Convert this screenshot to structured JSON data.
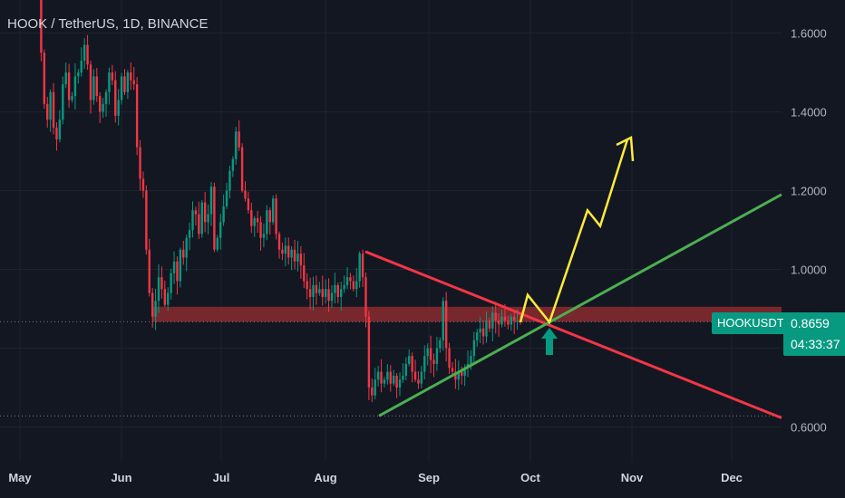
{
  "header": {
    "title": "HOOK / TetherUS, 1D, BINANCE"
  },
  "price_tag": {
    "symbol": "HOOKUSDT",
    "price": "0.8659",
    "countdown": "04:33:37"
  },
  "colors": {
    "background": "#131722",
    "up": "#089981",
    "down": "#f23645",
    "zone": "#8b2a2e",
    "resistance_line": "#f23645",
    "support_line": "#4caf50",
    "projection": "#ffeb3b",
    "breakout_arrow": "#089981"
  },
  "chart_data": {
    "type": "candlestick",
    "title": "HOOK / TetherUS, 1D, BINANCE",
    "y_ticks": [
      "1.6000",
      "1.4000",
      "1.2000",
      "1.0000",
      "0.6000"
    ],
    "x_ticks": [
      "May",
      "Jun",
      "Jul",
      "Aug",
      "Sep",
      "Oct",
      "Nov",
      "Dec"
    ],
    "ylim": [
      0.56,
      1.68
    ],
    "last_price": 0.8659,
    "support_level": 0.628,
    "zone": {
      "from": 0.867,
      "to": 0.905
    },
    "closes": [
      1.72,
      1.55,
      1.42,
      1.38,
      1.45,
      1.36,
      1.33,
      1.38,
      1.47,
      1.5,
      1.43,
      1.44,
      1.49,
      1.5,
      1.53,
      1.57,
      1.52,
      1.43,
      1.49,
      1.44,
      1.4,
      1.42,
      1.45,
      1.5,
      1.48,
      1.39,
      1.43,
      1.49,
      1.45,
      1.5,
      1.48,
      1.47,
      1.31,
      1.23,
      1.2,
      1.05,
      0.94,
      0.88,
      0.92,
      0.98,
      0.95,
      0.91,
      0.94,
      0.99,
      1.02,
      0.97,
      1.05,
      1.03,
      1.08,
      1.1,
      1.15,
      1.14,
      1.09,
      1.17,
      1.12,
      1.14,
      1.21,
      1.05,
      1.08,
      1.12,
      1.16,
      1.2,
      1.25,
      1.28,
      1.35,
      1.31,
      1.2,
      1.18,
      1.15,
      1.11,
      1.13,
      1.12,
      1.08,
      1.09,
      1.15,
      1.12,
      1.18,
      1.09,
      1.05,
      1.04,
      1.06,
      1.03,
      1.05,
      1.02,
      1.04,
      1.01,
      0.97,
      0.95,
      0.93,
      0.96,
      0.94,
      0.95,
      0.93,
      0.95,
      0.92,
      0.94,
      0.96,
      0.93,
      0.95,
      0.96,
      0.98,
      0.97,
      0.95,
      0.97,
      1.04,
      0.98,
      0.88,
      0.7,
      0.68,
      0.72,
      0.74,
      0.71,
      0.72,
      0.74,
      0.71,
      0.73,
      0.7,
      0.72,
      0.73,
      0.76,
      0.78,
      0.74,
      0.72,
      0.71,
      0.74,
      0.78,
      0.8,
      0.77,
      0.76,
      0.8,
      0.82,
      0.92,
      0.8,
      0.75,
      0.74,
      0.72,
      0.74,
      0.73,
      0.75,
      0.76,
      0.78,
      0.82,
      0.84,
      0.85,
      0.83,
      0.87,
      0.85,
      0.89,
      0.87,
      0.86,
      0.88,
      0.87,
      0.86,
      0.88,
      0.87,
      0.87,
      0.866
    ],
    "resistance_line": {
      "points": [
        [
          "2023-08-13",
          1.045
        ],
        [
          "2023-12-15",
          0.623
        ]
      ]
    },
    "support_line": {
      "points": [
        [
          "2023-08-18",
          0.628
        ],
        [
          "2023-12-15",
          1.19
        ]
      ]
    },
    "projection_path": [
      [
        "2023-09-25",
        0.866
      ],
      [
        "2023-09-30",
        0.935
      ],
      [
        "2023-10-05",
        0.866
      ],
      [
        "2023-10-18",
        1.15
      ],
      [
        "2023-10-25",
        1.11
      ],
      [
        "2023-11-01",
        1.33
      ]
    ],
    "projection_arrow_tip": [
      "2023-11-02",
      1.28
    ]
  }
}
